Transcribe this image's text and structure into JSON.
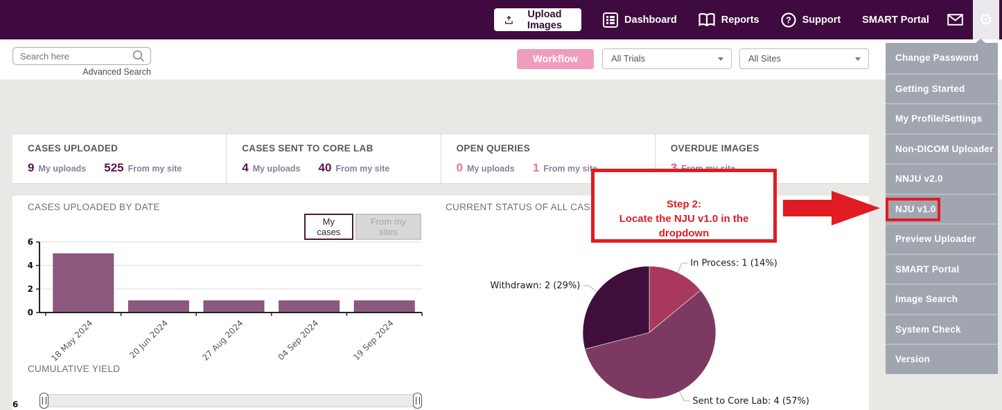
{
  "nav": {
    "upload_button": {
      "label": "Upload Images",
      "icon": "upload-icon"
    },
    "items": [
      {
        "label": "Dashboard",
        "icon": "dashboard-icon"
      },
      {
        "label": "Reports",
        "icon": "reports-icon"
      },
      {
        "label": "Support",
        "icon": "support-icon"
      },
      {
        "label": "SMART Portal",
        "icon": ""
      }
    ],
    "mail_icon": "mail-icon",
    "settings_icon": "gear-icon",
    "colors": {
      "bar_bg": "#3f0a3f",
      "active_item_bg": "#ece8f0"
    }
  },
  "toolbar": {
    "search_placeholder": "Search here",
    "advanced_search": "Advanced Search",
    "workflow_button": "Workflow",
    "trials_dropdown": "All Trials",
    "sites_dropdown": "All Sites",
    "workflow_color": "#f09cbe"
  },
  "stats_cards": [
    {
      "title": "CASES UPLOADED",
      "metrics": [
        {
          "value": "9",
          "label": "My uploads",
          "color": "#5f1247"
        },
        {
          "value": "525",
          "label": "From my site",
          "color": "#5f1247"
        }
      ]
    },
    {
      "title": "CASES SENT TO CORE LAB",
      "metrics": [
        {
          "value": "4",
          "label": "My uploads",
          "color": "#5f1247"
        },
        {
          "value": "40",
          "label": "From my site",
          "color": "#5f1247"
        }
      ]
    },
    {
      "title": "OPEN QUERIES",
      "metrics": [
        {
          "value": "0",
          "label": "My uploads",
          "color": "#ee6fa5"
        },
        {
          "value": "1",
          "label": "From my site",
          "color": "#ee6fa5"
        }
      ]
    },
    {
      "title": "OVERDUE IMAGES",
      "metrics": [
        {
          "value": "3",
          "label": "From my site",
          "color": "#ee5586"
        }
      ]
    }
  ],
  "charts_panel": {
    "bar_section_title": "CASES UPLOADED BY DATE",
    "toggle_buttons": [
      {
        "label": "My cases",
        "active": true
      },
      {
        "label": "From my sites",
        "active": false
      }
    ],
    "pie_section_title": "CURRENT STATUS OF ALL CASES",
    "yield_section_title": "CUMULATIVE YIELD",
    "yield_axis_label": "6"
  },
  "chart_data": [
    {
      "type": "bar",
      "title": "CASES UPLOADED BY DATE",
      "categories": [
        "18 May 2024",
        "20 Jun 2024",
        "27 Aug 2024",
        "04 Sep 2024",
        "19 Sep 2024"
      ],
      "values": [
        5,
        1,
        1,
        1,
        1
      ],
      "xlabel": "",
      "ylabel": "",
      "ylim": [
        0,
        6
      ],
      "yticks": [
        0,
        2,
        4,
        6
      ],
      "grid": true,
      "bar_color": "#8d587e",
      "bar_edge_color": "#7d4970"
    },
    {
      "type": "pie",
      "title": "CURRENT STATUS OF ALL CASES",
      "start_angle": "top",
      "direction": "clockwise",
      "slices": [
        {
          "label": "In Process",
          "value": 1,
          "pct": 14,
          "color": "#a8395c",
          "display": "In Process: 1 (14%)"
        },
        {
          "label": "Sent to Core Lab",
          "value": 4,
          "pct": 57,
          "color": "#7c3a62",
          "display": "Sent to Core Lab: 4 (57%)"
        },
        {
          "label": "Withdrawn",
          "value": 2,
          "pct": 29,
          "color": "#3f0e3a",
          "display": "Withdrawn: 2 (29%)"
        }
      ]
    }
  ],
  "annotation": {
    "lines": [
      "Step 2:",
      "Locate the NJU v1.0 in the",
      "dropdown"
    ],
    "color": "#e11b22",
    "arrow": "red-arrow-right"
  },
  "dropdown_menu": {
    "items": [
      "Change Password",
      "Getting Started",
      "My Profile/Settings",
      "Non-DICOM Uploader",
      "NNJU v2.0",
      "NJU v1.0",
      "Preview Uploader",
      "SMART Portal",
      "Image Search",
      "System Check",
      "Version"
    ],
    "highlighted_item": "NJU v1.0",
    "bg": "#a1a5b0"
  }
}
